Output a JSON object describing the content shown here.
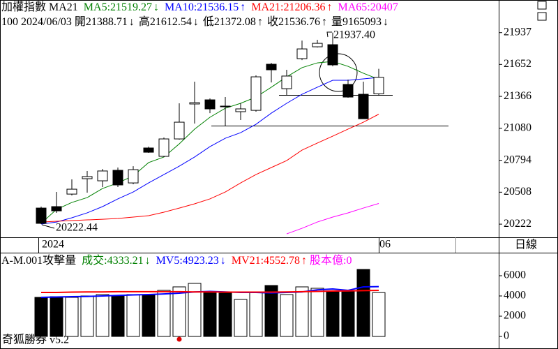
{
  "chart_data": [
    {
      "type": "candlestick",
      "title": "加權指數 MA21",
      "info": [
        {
          "text": "100 2024/06/03 開21388.71",
          "arrow": "↓"
        },
        {
          "text": "高21612.54",
          "arrow": "↓"
        },
        {
          "text": "低21372.08",
          "arrow": "↑"
        },
        {
          "text": "收21536.76",
          "arrow": "↑"
        },
        {
          "text": "量9165093",
          "arrow": "↓"
        }
      ],
      "categories": [
        "2024",
        null,
        null,
        null,
        null,
        null,
        null,
        null,
        null,
        null,
        null,
        null,
        null,
        null,
        null,
        null,
        null,
        null,
        null,
        null,
        null,
        null,
        "06"
      ],
      "open": [
        20366,
        20379,
        20491,
        20629,
        20610,
        20704,
        20591,
        20904,
        20829,
        20985,
        21298,
        21335,
        21279,
        21229,
        21241,
        21654,
        21435,
        21704,
        21810,
        21829,
        21473,
        21385,
        21388.71
      ],
      "high": [
        20379,
        20510,
        20623,
        20698,
        20716,
        20729,
        20741,
        20916,
        20998,
        21304,
        21498,
        21348,
        21360,
        21304,
        21554,
        21666,
        21604,
        21866,
        21873,
        21937.4,
        21516,
        21498,
        21612.54
      ],
      "low": [
        20222.44,
        20323,
        20479,
        20504,
        20554,
        20554,
        20579,
        20860,
        20823,
        20979,
        21123,
        21216,
        21098,
        21154,
        21229,
        21491,
        21379,
        21691,
        21804,
        21635,
        21354,
        21166,
        21372.08
      ],
      "close": [
        20229,
        20341,
        20535,
        20648,
        20698,
        20573,
        20710,
        20866,
        20985,
        21135,
        21310,
        21254,
        21273,
        21254,
        21541,
        21604,
        21548,
        21791,
        21841,
        21648,
        21360,
        21166,
        21536.76
      ],
      "up_color": "#ffffff",
      "down_color": "#000000",
      "series": [
        {
          "name": "MA5:21519.27",
          "arrow": "↓",
          "color": "#008000",
          "values": [
            20229,
            20354,
            20416,
            20460,
            20541,
            20591,
            20654,
            20773,
            20823,
            20941,
            21073,
            21179,
            21260,
            21304,
            21360,
            21448,
            21541,
            21623,
            21666,
            21679,
            21635,
            21573,
            21519.27
          ]
        },
        {
          "name": "MA10:21536.15",
          "arrow": "↑",
          "color": "#0000ff",
          "values": [
            20223,
            20241,
            20279,
            20323,
            20379,
            20448,
            20510,
            20591,
            20666,
            20741,
            20823,
            20916,
            20991,
            21041,
            21116,
            21216,
            21304,
            21385,
            21448,
            21510,
            21510,
            21523,
            21536.15
          ]
        },
        {
          "name": "MA21:21206.36",
          "arrow": "↑",
          "color": "#ff0000",
          "values": [
            20241,
            20248,
            20254,
            20260,
            20266,
            20273,
            20285,
            20298,
            20329,
            20366,
            20404,
            20448,
            20510,
            20591,
            20666,
            20729,
            20791,
            20885,
            20948,
            21010,
            21073,
            21135,
            21206.36
          ]
        },
        {
          "name": "MA65:20407",
          "arrow": "",
          "color": "#ff00ff",
          "values": [
            null,
            null,
            null,
            null,
            null,
            null,
            null,
            null,
            null,
            null,
            null,
            null,
            null,
            null,
            null,
            null,
            20135,
            20185,
            20241,
            20285,
            20323,
            20366,
            20407
          ]
        }
      ],
      "ylim": [
        20104,
        22229
      ],
      "yticks": [
        20222,
        20508,
        20794,
        21080,
        21366,
        21652,
        21937
      ],
      "annotations": [
        {
          "text": "21937.40"
        },
        {
          "text": "20222.44"
        }
      ],
      "period": "日線"
    },
    {
      "type": "bar",
      "title": "A-M.001攻擊量",
      "bars": {
        "name": "成交:4333.21",
        "arrow": "↓",
        "color": "#008000",
        "values": [
          3862,
          3931,
          3862,
          4000,
          4138,
          4000,
          4138,
          4138,
          4552,
          4897,
          5241,
          4414,
          4276,
          3655,
          4414,
          5034,
          4138,
          4897,
          4759,
          4414,
          4414,
          6621,
          4333.21
        ]
      },
      "series": [
        {
          "name": "MV5:4923.23",
          "arrow": "↓",
          "color": "#0000ff",
          "values": [
            3862,
            3900,
            3931,
            3950,
            4000,
            4050,
            4100,
            4138,
            4200,
            4276,
            4400,
            4450,
            4400,
            4345,
            4345,
            4300,
            4345,
            4400,
            4600,
            4690,
            4552,
            4897,
            4923.23
          ]
        },
        {
          "name": "MV21:4552.78",
          "arrow": "↑",
          "color": "#ff0000",
          "values": [
            4345,
            4345,
            4380,
            4400,
            4400,
            4420,
            4420,
            4420,
            4420,
            4420,
            4400,
            4400,
            4380,
            4380,
            4380,
            4380,
            4400,
            4420,
            4450,
            4480,
            4500,
            4530,
            4552.78
          ]
        }
      ],
      "extra": {
        "text": "股本億:0",
        "color": "#ff00ff"
      },
      "ylim": [
        -1034,
        8276
      ],
      "yticks": [
        0,
        2000,
        4000,
        6000
      ]
    },
    {
      "type": "footer",
      "text": "奇狐勝券 v5.2"
    }
  ]
}
